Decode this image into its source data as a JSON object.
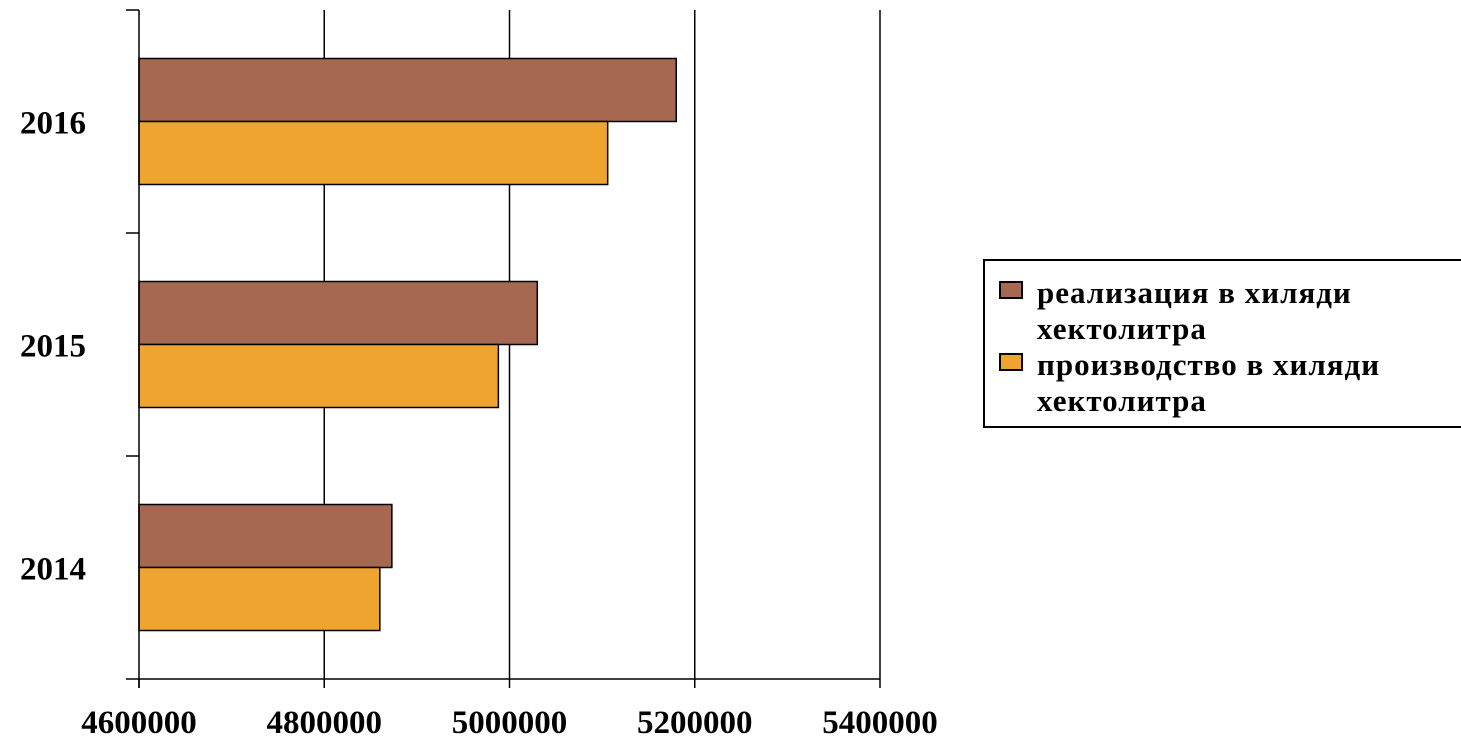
{
  "chart_data": {
    "type": "bar",
    "orientation": "horizontal",
    "categories": [
      "2014",
      "2015",
      "2016"
    ],
    "series": [
      {
        "name": "реализация в хиляди хектолитра",
        "color": "#A66850",
        "values": [
          4873000,
          5030000,
          5180000
        ]
      },
      {
        "name": "производство в хиляди хектолитра",
        "color": "#F0A430",
        "values": [
          4860000,
          4988000,
          5106000
        ]
      }
    ],
    "x_ticks": [
      "4600000",
      "4800000",
      "5000000",
      "5200000",
      "5400000"
    ],
    "xlim": [
      4600000,
      5400000
    ],
    "x_grid": true,
    "legend_position": "right",
    "title": "",
    "xlabel": "",
    "ylabel": ""
  }
}
